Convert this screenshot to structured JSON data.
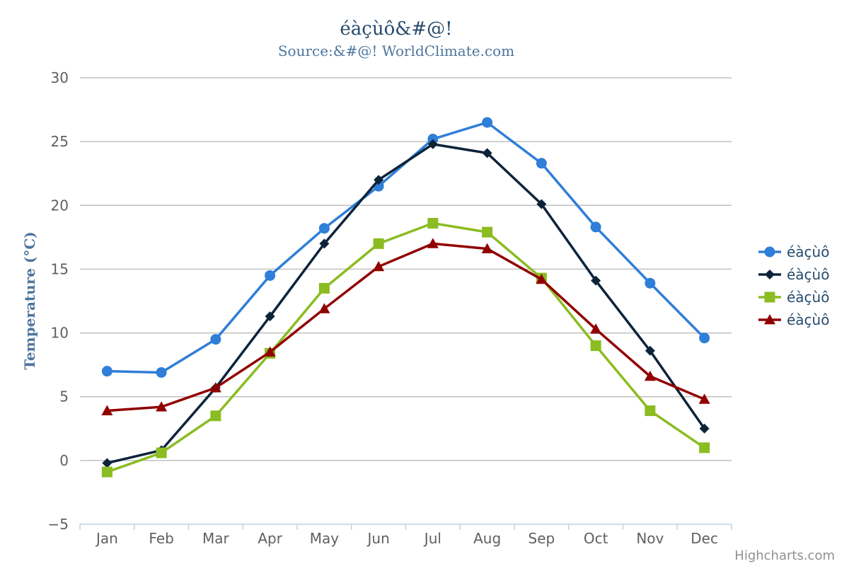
{
  "chart_data": {
    "type": "line",
    "title": "éàçùô&#@!",
    "subtitle": "Source:&#@! WorldClimate.com",
    "xlabel": "",
    "ylabel": "Temperature (°C)",
    "categories": [
      "Jan",
      "Feb",
      "Mar",
      "Apr",
      "May",
      "Jun",
      "Jul",
      "Aug",
      "Sep",
      "Oct",
      "Nov",
      "Dec"
    ],
    "ylim": [
      -5,
      30
    ],
    "yticks": [
      -5,
      0,
      5,
      10,
      15,
      20,
      25,
      30
    ],
    "ytick_labels": [
      "−5",
      "0",
      "5",
      "10",
      "15",
      "20",
      "25",
      "30"
    ],
    "grid": true,
    "legend_position": "right",
    "series": [
      {
        "name": "éàçùô",
        "color": "#2f7ed8",
        "marker": "circle",
        "values": [
          7.0,
          6.9,
          9.5,
          14.5,
          18.2,
          21.5,
          25.2,
          26.5,
          23.3,
          18.3,
          13.9,
          9.6
        ]
      },
      {
        "name": "éàçùô",
        "color": "#0d233a",
        "marker": "diamond",
        "values": [
          -0.2,
          0.8,
          5.7,
          11.3,
          17.0,
          22.0,
          24.8,
          24.1,
          20.1,
          14.1,
          8.6,
          2.5
        ]
      },
      {
        "name": "éàçùô",
        "color": "#8bbc21",
        "marker": "square",
        "values": [
          -0.9,
          0.6,
          3.5,
          8.4,
          13.5,
          17.0,
          18.6,
          17.9,
          14.3,
          9.0,
          3.9,
          1.0
        ]
      },
      {
        "name": "éàçùô",
        "color": "#910000",
        "marker": "triangle",
        "values": [
          3.9,
          4.2,
          5.7,
          8.5,
          11.9,
          15.2,
          17.0,
          16.6,
          14.2,
          10.3,
          6.6,
          4.8
        ]
      }
    ],
    "credits": "Highcharts.com"
  }
}
